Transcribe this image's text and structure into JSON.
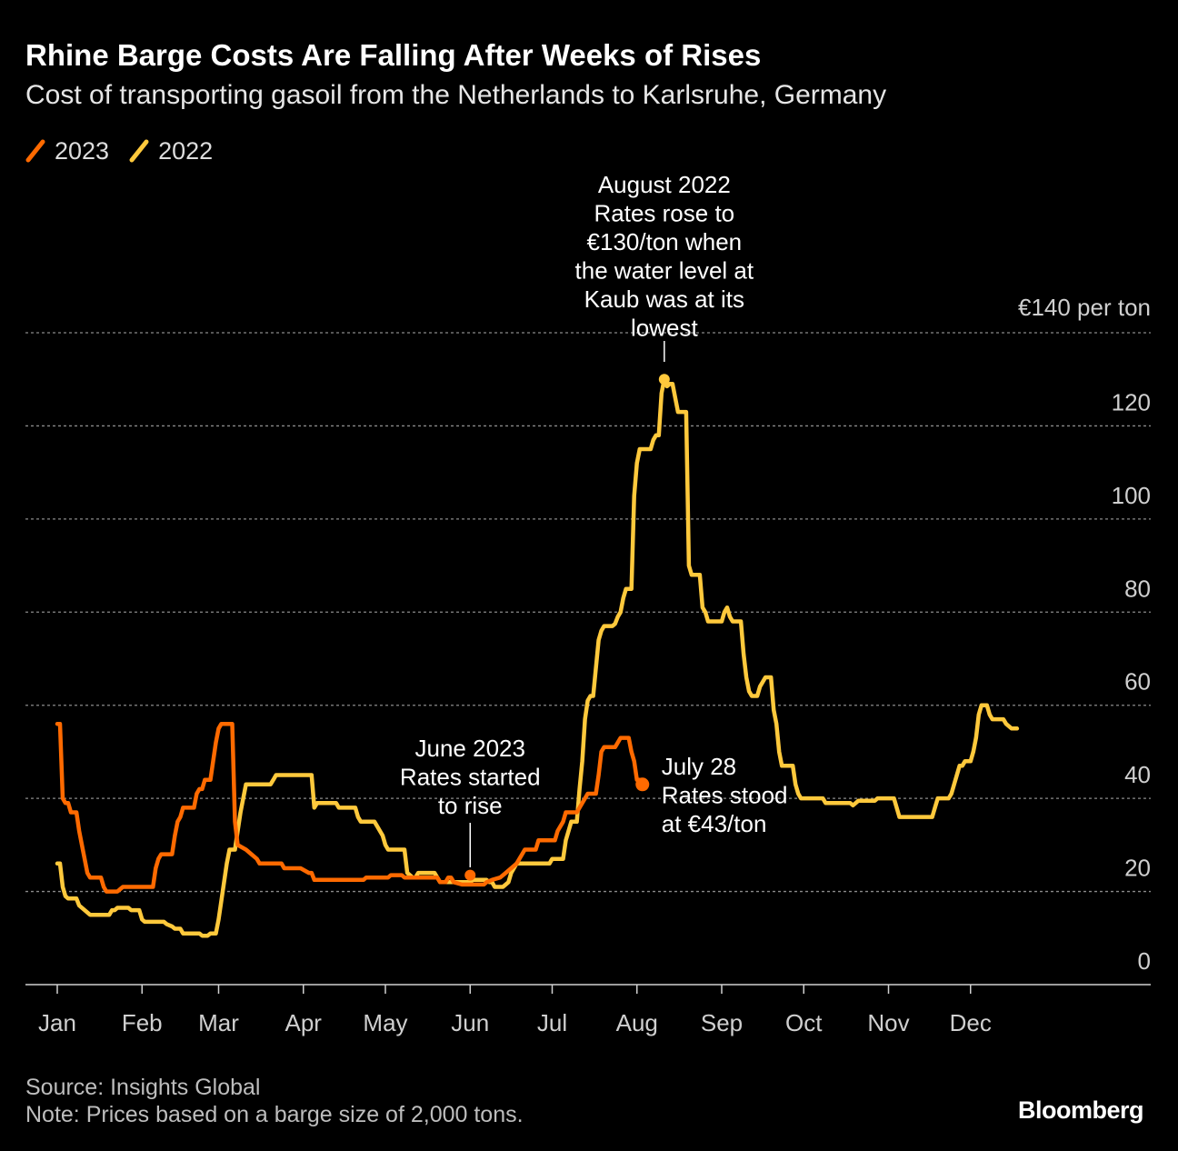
{
  "title": "Rhine Barge Costs Are Falling After Weeks of Rises",
  "subtitle": "Cost of transporting gasoil from the Netherlands to Karlsruhe, Germany",
  "legend": [
    {
      "label": "2023",
      "color": "#ff6a00"
    },
    {
      "label": "2022",
      "color": "#ffc93c"
    }
  ],
  "footer": {
    "source": "Source: Insights Global",
    "note": "Note: Prices based on a barge size of 2,000 tons.",
    "brand": "Bloomberg"
  },
  "chart_data": {
    "type": "line",
    "x_unit": "day of year",
    "xlim": [
      1,
      365
    ],
    "ylim": [
      0,
      140
    ],
    "y_unit_label": "€140 per ton",
    "yticks": [
      0,
      20,
      40,
      60,
      80,
      100,
      120,
      140
    ],
    "ytick_labels": [
      "0",
      "20",
      "40",
      "60",
      "80",
      "100",
      "120",
      "€140 per ton"
    ],
    "xticks": [
      1,
      32,
      60,
      91,
      121,
      152,
      182,
      213,
      244,
      274,
      305,
      335
    ],
    "xtick_labels": [
      "Jan",
      "Feb",
      "Mar",
      "Apr",
      "May",
      "Jun",
      "Jul",
      "Aug",
      "Sep",
      "Oct",
      "Nov",
      "Dec"
    ],
    "grid": true,
    "legend_position": "top-left",
    "series": [
      {
        "name": "2023",
        "color": "#ff6a00",
        "points": [
          [
            1,
            56
          ],
          [
            2,
            56
          ],
          [
            3,
            40
          ],
          [
            4,
            39
          ],
          [
            5,
            39
          ],
          [
            6,
            37
          ],
          [
            8,
            37
          ],
          [
            9,
            33
          ],
          [
            10,
            30
          ],
          [
            11,
            27
          ],
          [
            12,
            24
          ],
          [
            13,
            23
          ],
          [
            17,
            23
          ],
          [
            18,
            21
          ],
          [
            19,
            20
          ],
          [
            23,
            20
          ],
          [
            24,
            20.5
          ],
          [
            25,
            21
          ],
          [
            35,
            21
          ],
          [
            36,
            21
          ],
          [
            37,
            25
          ],
          [
            38,
            27
          ],
          [
            39,
            28
          ],
          [
            43,
            28
          ],
          [
            44,
            32
          ],
          [
            45,
            35
          ],
          [
            46,
            36
          ],
          [
            47,
            38
          ],
          [
            51,
            38
          ],
          [
            52,
            41
          ],
          [
            53,
            42
          ],
          [
            54,
            42
          ],
          [
            55,
            44
          ],
          [
            57,
            44
          ],
          [
            58,
            48
          ],
          [
            59,
            52
          ],
          [
            60,
            55
          ],
          [
            61,
            56
          ],
          [
            65,
            56
          ],
          [
            66,
            35
          ],
          [
            67,
            30
          ],
          [
            70,
            29
          ],
          [
            72,
            28
          ],
          [
            74,
            27
          ],
          [
            75,
            26
          ],
          [
            83,
            26
          ],
          [
            84,
            25
          ],
          [
            90,
            25
          ],
          [
            93,
            24
          ],
          [
            94,
            24
          ],
          [
            95,
            22.5
          ],
          [
            103,
            22.5
          ],
          [
            113,
            22.5
          ],
          [
            114,
            23
          ],
          [
            122,
            23
          ],
          [
            123,
            23.5
          ],
          [
            127,
            23.5
          ],
          [
            128,
            23
          ],
          [
            140,
            23
          ],
          [
            141,
            22
          ],
          [
            143,
            22
          ],
          [
            144,
            23
          ],
          [
            145,
            23
          ],
          [
            146,
            22
          ],
          [
            149,
            21.5
          ],
          [
            157,
            21.5
          ],
          [
            158,
            22
          ],
          [
            160,
            22.5
          ],
          [
            163,
            23
          ],
          [
            165,
            24
          ],
          [
            167,
            25
          ],
          [
            169,
            26
          ],
          [
            171,
            28
          ],
          [
            172,
            29
          ],
          [
            176,
            29
          ],
          [
            177,
            31
          ],
          [
            178,
            31
          ],
          [
            179,
            31
          ],
          [
            183,
            31
          ],
          [
            184,
            33
          ],
          [
            186,
            35
          ],
          [
            187,
            37
          ],
          [
            191,
            37
          ],
          [
            192,
            38
          ],
          [
            194,
            40
          ],
          [
            195,
            41
          ],
          [
            198,
            41
          ],
          [
            199,
            45
          ],
          [
            200,
            50
          ],
          [
            201,
            51
          ],
          [
            205,
            51
          ],
          [
            207,
            53
          ],
          [
            210,
            53
          ],
          [
            211,
            50
          ],
          [
            212,
            48
          ],
          [
            213,
            44
          ],
          [
            214,
            44
          ],
          [
            215,
            43
          ]
        ]
      },
      {
        "name": "2022",
        "color": "#ffc93c",
        "points": [
          [
            1,
            26
          ],
          [
            2,
            26
          ],
          [
            3,
            21
          ],
          [
            4,
            19
          ],
          [
            5,
            18.5
          ],
          [
            8,
            18.5
          ],
          [
            9,
            17
          ],
          [
            11,
            16
          ],
          [
            12,
            15.5
          ],
          [
            13,
            15
          ],
          [
            20,
            15
          ],
          [
            21,
            16
          ],
          [
            22,
            16
          ],
          [
            23,
            16.5
          ],
          [
            27,
            16.5
          ],
          [
            28,
            16
          ],
          [
            31,
            16
          ],
          [
            32,
            14
          ],
          [
            33,
            13.5
          ],
          [
            40,
            13.5
          ],
          [
            41,
            13
          ],
          [
            43,
            12.5
          ],
          [
            44,
            12
          ],
          [
            46,
            12
          ],
          [
            47,
            11
          ],
          [
            53,
            11
          ],
          [
            54,
            10.5
          ],
          [
            56,
            10.5
          ],
          [
            57,
            11
          ],
          [
            59,
            11
          ],
          [
            60,
            14
          ],
          [
            61,
            18
          ],
          [
            62,
            22
          ],
          [
            63,
            26
          ],
          [
            64,
            29
          ],
          [
            66,
            29
          ],
          [
            67,
            33
          ],
          [
            68,
            37
          ],
          [
            69,
            40
          ],
          [
            70,
            43
          ],
          [
            76,
            43
          ],
          [
            79,
            43
          ],
          [
            80,
            44
          ],
          [
            81,
            45
          ],
          [
            94,
            45
          ],
          [
            95,
            38
          ],
          [
            96,
            39
          ],
          [
            103,
            39
          ],
          [
            104,
            38
          ],
          [
            105,
            38
          ],
          [
            110,
            38
          ],
          [
            111,
            36
          ],
          [
            112,
            35
          ],
          [
            117,
            35
          ],
          [
            118,
            34
          ],
          [
            120,
            32
          ],
          [
            121,
            30
          ],
          [
            122,
            29
          ],
          [
            128,
            29
          ],
          [
            129,
            24
          ],
          [
            131,
            23
          ],
          [
            132,
            23
          ],
          [
            133,
            24
          ],
          [
            139,
            24
          ],
          [
            140,
            23
          ],
          [
            141,
            22
          ],
          [
            152,
            22
          ],
          [
            153,
            22.5
          ],
          [
            158,
            22.5
          ],
          [
            159,
            22
          ],
          [
            160,
            22
          ],
          [
            161,
            21
          ],
          [
            164,
            21
          ],
          [
            165,
            21.5
          ],
          [
            166,
            22
          ],
          [
            167,
            24
          ],
          [
            168,
            25
          ],
          [
            169,
            26
          ],
          [
            181,
            26
          ],
          [
            182,
            27
          ],
          [
            186,
            27
          ],
          [
            187,
            31
          ],
          [
            188,
            33
          ],
          [
            189,
            35
          ],
          [
            191,
            35
          ],
          [
            192,
            42
          ],
          [
            193,
            48
          ],
          [
            194,
            57
          ],
          [
            195,
            61
          ],
          [
            196,
            62
          ],
          [
            197,
            62
          ],
          [
            198,
            68
          ],
          [
            199,
            74
          ],
          [
            200,
            76
          ],
          [
            201,
            77
          ],
          [
            204,
            77
          ],
          [
            205,
            77.5
          ],
          [
            206,
            79
          ],
          [
            207,
            80
          ],
          [
            208,
            83
          ],
          [
            209,
            85
          ],
          [
            211,
            85
          ],
          [
            212,
            105
          ],
          [
            213,
            112
          ],
          [
            214,
            115
          ],
          [
            218,
            115
          ],
          [
            219,
            117
          ],
          [
            220,
            118
          ],
          [
            221,
            118
          ],
          [
            222,
            127
          ],
          [
            223,
            130
          ],
          [
            224,
            128.5
          ],
          [
            225,
            129
          ],
          [
            226,
            129
          ],
          [
            227,
            126
          ],
          [
            228,
            123
          ],
          [
            231,
            123
          ],
          [
            232,
            90
          ],
          [
            233,
            88
          ],
          [
            236,
            88
          ],
          [
            237,
            81
          ],
          [
            238,
            80
          ],
          [
            239,
            78
          ],
          [
            241,
            78
          ],
          [
            244,
            78
          ],
          [
            245,
            80
          ],
          [
            246,
            81
          ],
          [
            247,
            79
          ],
          [
            248,
            78
          ],
          [
            251,
            78
          ],
          [
            252,
            71
          ],
          [
            253,
            66
          ],
          [
            254,
            63
          ],
          [
            255,
            62
          ],
          [
            257,
            62
          ],
          [
            258,
            64
          ],
          [
            259,
            65
          ],
          [
            260,
            66
          ],
          [
            262,
            66
          ],
          [
            263,
            59
          ],
          [
            264,
            56
          ],
          [
            265,
            50
          ],
          [
            266,
            47
          ],
          [
            270,
            47
          ],
          [
            271,
            43
          ],
          [
            272,
            41
          ],
          [
            273,
            40
          ],
          [
            274,
            40
          ],
          [
            281,
            40
          ],
          [
            282,
            39
          ],
          [
            290,
            39
          ],
          [
            291,
            39
          ],
          [
            292,
            38.5
          ],
          [
            293,
            39
          ],
          [
            294,
            39.5
          ],
          [
            300,
            39.5
          ],
          [
            301,
            40
          ],
          [
            307,
            40
          ],
          [
            308,
            38
          ],
          [
            309,
            36
          ],
          [
            310,
            36
          ],
          [
            321,
            36
          ],
          [
            322,
            38
          ],
          [
            323,
            40
          ],
          [
            327,
            40
          ],
          [
            328,
            41
          ],
          [
            329,
            43
          ],
          [
            330,
            45
          ],
          [
            331,
            47
          ],
          [
            332,
            47
          ],
          [
            333,
            48
          ],
          [
            335,
            48
          ],
          [
            336,
            50
          ],
          [
            337,
            53
          ],
          [
            338,
            58
          ],
          [
            339,
            60
          ],
          [
            341,
            60
          ],
          [
            342,
            58
          ],
          [
            343,
            57
          ],
          [
            347,
            57
          ],
          [
            348,
            56
          ],
          [
            350,
            55
          ],
          [
            352,
            55
          ]
        ]
      }
    ],
    "annotations": [
      {
        "text": [
          "August 2022",
          "Rates rose to",
          "€130/ton when",
          "the water level at",
          "Kaub was at its",
          "lowest"
        ],
        "series": "2022",
        "x": 223,
        "y": 130
      },
      {
        "text": [
          "June 2023",
          "Rates started",
          "to rise"
        ],
        "series": "2023",
        "x": 152,
        "y": 23.5
      },
      {
        "text": [
          "July 28",
          "Rates stood",
          "at €43/ton"
        ],
        "series": "2023",
        "x": 215,
        "y": 43
      }
    ]
  }
}
